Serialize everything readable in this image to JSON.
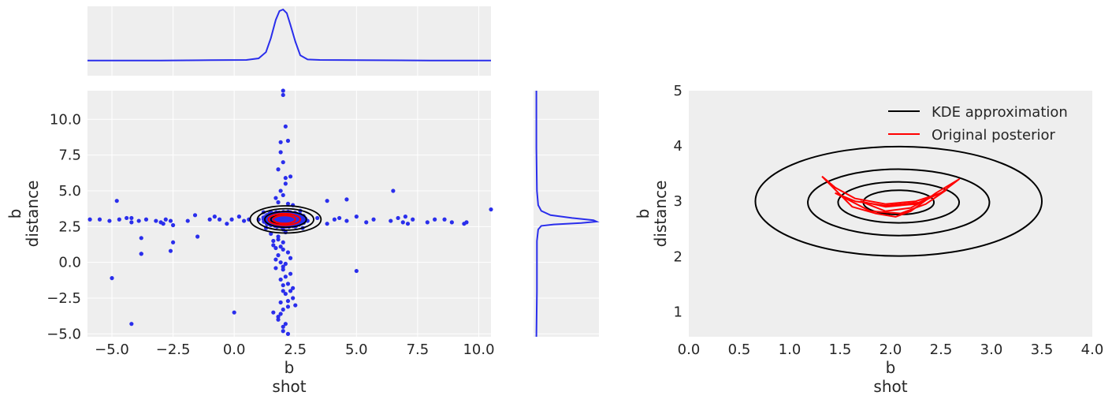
{
  "colors": {
    "panel_bg": "#eeeeee",
    "grid": "#ffffff",
    "scatter": "#2a2eec",
    "marginal": "#2a2eec",
    "kde": "#000000",
    "posterior": "#ff0000",
    "text": "#262626"
  },
  "chart_data": [
    {
      "id": "joint",
      "type": "scatter",
      "xlabel_line1": "b",
      "xlabel_line2": "shot",
      "ylabel_line1": "b",
      "ylabel_line2": "distance",
      "xlim": [
        -6,
        10.5
      ],
      "ylim": [
        -5.2,
        12
      ],
      "xticks": [
        -5.0,
        -2.5,
        0.0,
        2.5,
        5.0,
        7.5,
        10.0
      ],
      "xtick_labels": [
        "−5.0",
        "−2.5",
        "0.0",
        "2.5",
        "5.0",
        "7.5",
        "10.0"
      ],
      "yticks": [
        -5.0,
        -2.5,
        0.0,
        2.5,
        5.0,
        7.5,
        10.0
      ],
      "ytick_labels": [
        "−5.0",
        "−2.5",
        "0.0",
        "2.5",
        "5.0",
        "7.5",
        "10.0"
      ],
      "grid": true,
      "sample_points": {
        "x": [
          -5.9,
          -5.5,
          -5.1,
          -4.7,
          -4.4,
          -4.2,
          -3.9,
          -3.8,
          -3.6,
          -3.2,
          -3.0,
          -2.8,
          -2.6,
          -2.5,
          -1.9,
          -1.5,
          -1.0,
          -0.8,
          -0.6,
          -0.3,
          -0.1,
          0.2,
          0.4,
          0.6,
          3.4,
          3.8,
          4.1,
          4.3,
          4.6,
          5.0,
          5.4,
          5.7,
          6.4,
          6.7,
          6.9,
          7.1,
          7.3,
          7.9,
          8.2,
          8.6,
          8.9,
          9.4,
          10.5,
          -4.8,
          -3.8,
          -2.6,
          -4.2,
          -3.8,
          -1.6,
          -2.9,
          -2.5,
          -5.0,
          -4.2,
          0.0,
          5.0,
          9.5,
          6.5,
          7.0,
          3.8,
          4.6
        ],
        "y": [
          3.0,
          3.0,
          2.9,
          3.0,
          3.1,
          2.8,
          2.9,
          1.7,
          3.0,
          2.9,
          2.8,
          3.0,
          2.9,
          2.6,
          2.9,
          1.8,
          3.0,
          3.2,
          3.0,
          2.7,
          3.0,
          3.2,
          2.9,
          3.0,
          3.1,
          2.7,
          3.0,
          3.1,
          2.9,
          3.2,
          2.8,
          3.0,
          2.9,
          3.1,
          2.8,
          2.7,
          3.0,
          2.8,
          3.0,
          3.0,
          2.8,
          2.7,
          3.7,
          4.3,
          0.6,
          0.8,
          -4.3,
          0.6,
          3.3,
          2.7,
          1.4,
          -1.1,
          3.1,
          -3.5,
          -0.6,
          2.8,
          5.0,
          3.2,
          4.3,
          4.4
        ],
        "core_x": [
          1.5,
          1.6,
          1.7,
          1.8,
          1.9,
          2.0,
          2.1,
          2.2,
          2.3,
          2.4,
          2.5,
          1.6,
          1.8,
          2.0,
          2.2,
          2.4,
          1.7,
          1.9,
          2.1,
          2.3,
          1.8,
          2.0,
          2.2,
          1.9,
          2.1,
          2.0,
          1.4,
          2.6,
          1.5,
          2.5,
          1.8,
          2.2,
          2.0,
          1.9,
          2.1,
          2.0,
          1.7,
          2.3,
          1.6,
          2.4,
          2.0,
          1.8,
          2.2,
          2.0,
          1.9,
          2.1,
          1.3,
          2.7,
          1.0,
          3.0,
          1.2,
          2.8,
          2.0,
          1.9,
          2.1,
          2.0,
          1.8,
          2.2,
          2.0,
          2.0,
          1.9,
          2.1,
          2.0,
          1.7,
          2.3,
          2.0,
          1.8,
          2.2,
          1.9,
          2.1
        ],
        "core_y": [
          2.0,
          1.5,
          1.0,
          0.5,
          0.0,
          -0.5,
          -1.0,
          -1.5,
          -2.0,
          -2.5,
          -3.0,
          -3.5,
          -4.0,
          -4.5,
          -5.0,
          4.0,
          4.5,
          5.0,
          5.5,
          6.0,
          6.5,
          7.0,
          8.5,
          8.4,
          9.5,
          12.0,
          3.0,
          3.0,
          3.5,
          2.5,
          1.8,
          0.7,
          -0.3,
          -1.2,
          -2.2,
          -3.3,
          0.2,
          -0.8,
          1.2,
          -1.8,
          -4.8,
          -3.8,
          -2.7,
          2.3,
          1.1,
          -0.1,
          2.4,
          3.6,
          3.0,
          2.9,
          3.5,
          2.4,
          11.7,
          7.7,
          5.9,
          4.7,
          4.2,
          4.1,
          1.4,
          -2.0,
          -2.8,
          -4.3,
          0.9,
          -0.4,
          0.3,
          -1.6,
          1.6,
          -3.1,
          -3.6,
          2.1
        ]
      },
      "kde_contours_xy": [
        {
          "cx": 2.1,
          "cy": 3.0,
          "rx": 1.45,
          "ry": 0.95
        },
        {
          "cx": 2.1,
          "cy": 3.0,
          "rx": 1.15,
          "ry": 0.75
        },
        {
          "cx": 2.1,
          "cy": 3.0,
          "rx": 0.85,
          "ry": 0.55
        },
        {
          "cx": 2.1,
          "cy": 3.0,
          "rx": 0.6,
          "ry": 0.38
        }
      ],
      "posterior_contours_xy": [
        {
          "cx": 2.05,
          "cy": 3.0,
          "rx": 0.65,
          "ry": 0.4
        },
        {
          "cx": 2.05,
          "cy": 3.0,
          "rx": 0.45,
          "ry": 0.28
        }
      ]
    },
    {
      "id": "marginal_x",
      "type": "line",
      "x": [
        -6,
        -3,
        -1,
        0.5,
        1.0,
        1.3,
        1.5,
        1.7,
        1.85,
        2.0,
        2.15,
        2.3,
        2.5,
        2.7,
        3.0,
        3.5,
        5,
        8,
        10.5
      ],
      "y": [
        0.02,
        0.02,
        0.025,
        0.03,
        0.06,
        0.18,
        0.45,
        0.8,
        0.97,
        1.0,
        0.93,
        0.7,
        0.38,
        0.12,
        0.04,
        0.03,
        0.025,
        0.02,
        0.02
      ]
    },
    {
      "id": "marginal_y",
      "type": "line",
      "y": [
        12,
        8,
        5,
        4,
        3.6,
        3.3,
        3.1,
        2.95,
        2.85,
        2.75,
        2.65,
        2.55,
        2.3,
        1.5,
        0,
        -2,
        -5.2
      ],
      "x": [
        0.02,
        0.02,
        0.03,
        0.05,
        0.1,
        0.25,
        0.6,
        0.95,
        1.0,
        0.75,
        0.3,
        0.1,
        0.05,
        0.03,
        0.03,
        0.03,
        0.02
      ]
    },
    {
      "id": "contour",
      "type": "line",
      "xlabel_line1": "b",
      "xlabel_line2": "shot",
      "ylabel_line1": "b",
      "ylabel_line2": "distance",
      "xlim": [
        0.0,
        4.0
      ],
      "ylim": [
        0.55,
        5.0
      ],
      "xticks": [
        0.0,
        0.5,
        1.0,
        1.5,
        2.0,
        2.5,
        3.0,
        3.5,
        4.0
      ],
      "xtick_labels": [
        "0.0",
        "0.5",
        "1.0",
        "1.5",
        "2.0",
        "2.5",
        "3.0",
        "3.5",
        "4.0"
      ],
      "yticks": [
        1,
        2,
        3,
        4,
        5
      ],
      "ytick_labels": [
        "1",
        "2",
        "3",
        "4",
        "5"
      ],
      "grid": false,
      "legend_placement": "top-right",
      "series": [
        {
          "name": "KDE approximation",
          "color": "#000000",
          "ellipses": [
            {
              "cx": 2.08,
              "cy": 3.0,
              "rx": 1.42,
              "ry": 0.99
            },
            {
              "cx": 2.08,
              "cy": 2.98,
              "rx": 0.9,
              "ry": 0.6
            },
            {
              "cx": 2.08,
              "cy": 2.98,
              "rx": 0.6,
              "ry": 0.37
            },
            {
              "cx": 2.08,
              "cy": 2.98,
              "rx": 0.35,
              "ry": 0.22
            }
          ]
        },
        {
          "name": "Original posterior",
          "color": "#ff0000",
          "curves": [
            [
              [
                1.32,
                3.45
              ],
              [
                1.45,
                3.25
              ],
              [
                1.65,
                3.05
              ],
              [
                1.95,
                2.95
              ],
              [
                2.25,
                3.0
              ],
              [
                2.5,
                3.15
              ],
              [
                2.68,
                3.4
              ],
              [
                2.45,
                3.15
              ],
              [
                2.2,
                2.82
              ],
              [
                2.05,
                2.72
              ],
              [
                1.85,
                2.78
              ],
              [
                1.62,
                2.9
              ],
              [
                1.32,
                3.45
              ]
            ],
            [
              [
                1.45,
                3.15
              ],
              [
                1.65,
                3.0
              ],
              [
                1.95,
                2.92
              ],
              [
                2.3,
                2.98
              ],
              [
                2.55,
                3.2
              ],
              [
                2.35,
                2.95
              ],
              [
                2.1,
                2.78
              ],
              [
                1.8,
                2.82
              ],
              [
                1.45,
                3.15
              ]
            ],
            [
              [
                1.7,
                3.0
              ],
              [
                1.95,
                2.9
              ],
              [
                2.25,
                2.95
              ],
              [
                2.4,
                3.08
              ],
              [
                2.2,
                2.88
              ],
              [
                1.95,
                2.82
              ],
              [
                1.7,
                3.0
              ]
            ]
          ]
        }
      ]
    }
  ]
}
